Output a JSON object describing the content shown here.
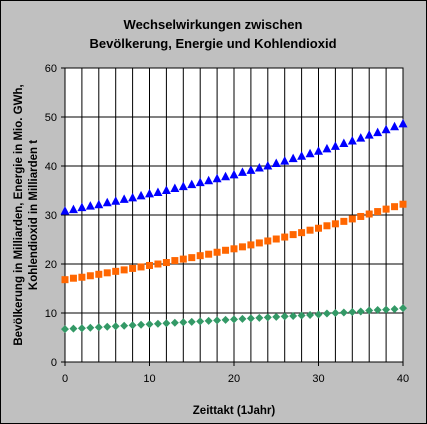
{
  "chart_data": {
    "type": "scatter",
    "title": [
      "Wechselwirkungen zwischen",
      "Bevölkerung, Energie und Kohlendioxid"
    ],
    "xlabel": "Zeittakt (1Jahr)",
    "ylabel": [
      "Bevölkerung in Milliarden, Energie in Mio. GWh,",
      "Kohlendioxid in Milliarden t"
    ],
    "xlim": [
      0,
      40
    ],
    "ylim": [
      0,
      60
    ],
    "x_ticks": [
      0,
      10,
      20,
      30,
      40
    ],
    "y_ticks": [
      0,
      10,
      20,
      30,
      40,
      50,
      60
    ],
    "grid": true,
    "grid_vertical_step": 2,
    "plot_background": "#ffffff",
    "series": [
      {
        "marker": "triangle",
        "color": "#0000ff",
        "x": [
          0,
          1,
          2,
          3,
          4,
          5,
          6,
          7,
          8,
          9,
          10,
          11,
          12,
          13,
          14,
          15,
          16,
          17,
          18,
          19,
          20,
          21,
          22,
          23,
          24,
          25,
          26,
          27,
          28,
          29,
          30,
          31,
          32,
          33,
          34,
          35,
          36,
          37,
          38,
          39,
          40
        ],
        "values": [
          30.8,
          31.1,
          31.5,
          31.8,
          32.1,
          32.5,
          32.8,
          33.2,
          33.5,
          33.9,
          34.3,
          34.6,
          35.0,
          35.4,
          35.8,
          36.2,
          36.6,
          37.0,
          37.4,
          37.8,
          38.2,
          38.7,
          39.1,
          39.6,
          40.0,
          40.5,
          41.0,
          41.5,
          42.0,
          42.5,
          43.0,
          43.5,
          44.0,
          44.6,
          45.1,
          45.7,
          46.3,
          46.8,
          47.4,
          48.0,
          48.6
        ]
      },
      {
        "marker": "square",
        "color": "#ff6600",
        "x": [
          0,
          1,
          2,
          3,
          4,
          5,
          6,
          7,
          8,
          9,
          10,
          11,
          12,
          13,
          14,
          15,
          16,
          17,
          18,
          19,
          20,
          21,
          22,
          23,
          24,
          25,
          26,
          27,
          28,
          29,
          30,
          31,
          32,
          33,
          34,
          35,
          36,
          37,
          38,
          39,
          40
        ],
        "values": [
          16.8,
          17.1,
          17.3,
          17.6,
          17.9,
          18.2,
          18.5,
          18.8,
          19.1,
          19.4,
          19.7,
          20.0,
          20.3,
          20.7,
          21.0,
          21.3,
          21.7,
          22.0,
          22.4,
          22.8,
          23.1,
          23.5,
          23.9,
          24.3,
          24.7,
          25.1,
          25.5,
          26.0,
          26.4,
          26.9,
          27.3,
          27.8,
          28.2,
          28.7,
          29.2,
          29.7,
          30.2,
          30.7,
          31.2,
          31.7,
          32.2
        ]
      },
      {
        "marker": "diamond",
        "color": "#339966",
        "x": [
          0,
          1,
          2,
          3,
          4,
          5,
          6,
          7,
          8,
          9,
          10,
          11,
          12,
          13,
          14,
          15,
          16,
          17,
          18,
          19,
          20,
          21,
          22,
          23,
          24,
          25,
          26,
          27,
          28,
          29,
          30,
          31,
          32,
          33,
          34,
          35,
          36,
          37,
          38,
          39,
          40
        ],
        "values": [
          6.7,
          6.8,
          6.9,
          7.0,
          7.1,
          7.2,
          7.3,
          7.4,
          7.5,
          7.6,
          7.7,
          7.8,
          7.9,
          8.0,
          8.1,
          8.2,
          8.3,
          8.4,
          8.5,
          8.6,
          8.7,
          8.8,
          8.9,
          9.0,
          9.1,
          9.2,
          9.3,
          9.4,
          9.5,
          9.6,
          9.7,
          9.9,
          10.0,
          10.1,
          10.2,
          10.3,
          10.5,
          10.6,
          10.7,
          10.8,
          11.0
        ]
      }
    ]
  }
}
